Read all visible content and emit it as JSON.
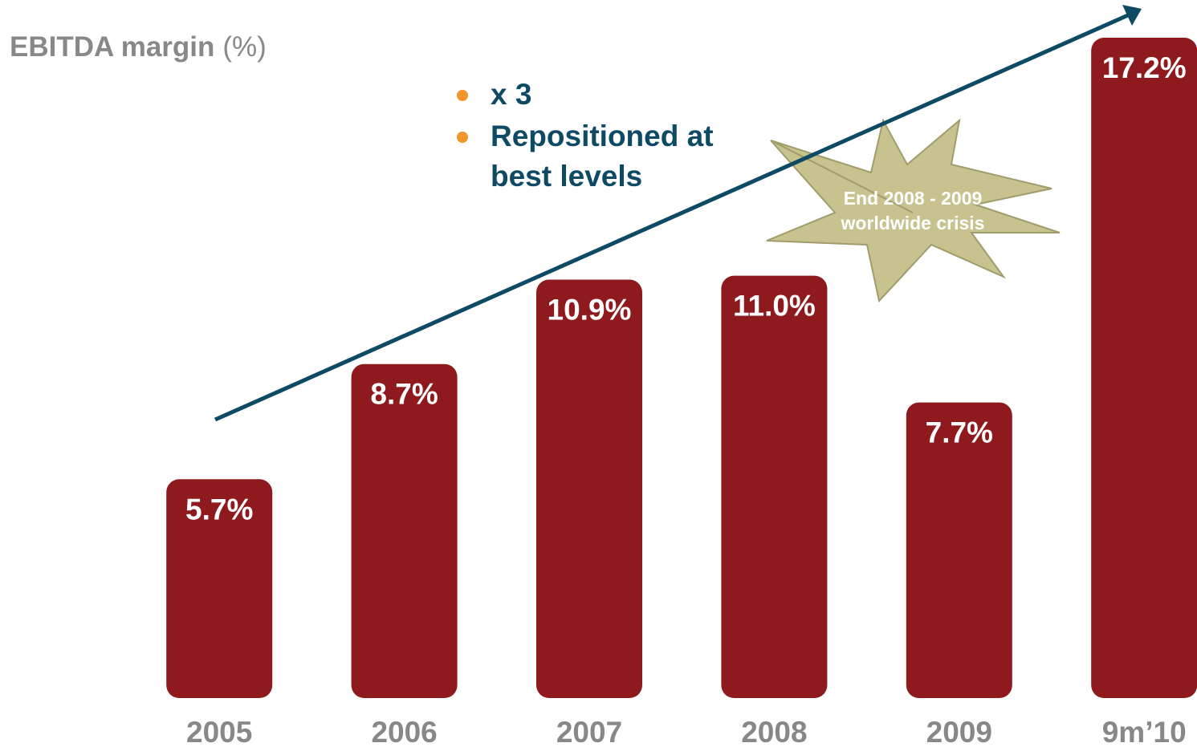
{
  "chart_data": {
    "type": "bar",
    "title": "EBITDA margin",
    "unit": "(%)",
    "categories": [
      "2005",
      "2006",
      "2007",
      "2008",
      "2009",
      "9m’10"
    ],
    "values": [
      5.7,
      8.7,
      10.9,
      11.0,
      7.7,
      17.2
    ],
    "value_labels": [
      "5.7%",
      "8.7%",
      "10.9%",
      "11.0%",
      "7.7%",
      "17.2%"
    ],
    "color": "#8e1a1e",
    "ylim": [
      0,
      17.2
    ],
    "annotations": [
      "x 3",
      "Repositioned at best levels",
      "End 2008 - 2009 worldwide crisis"
    ]
  }
}
